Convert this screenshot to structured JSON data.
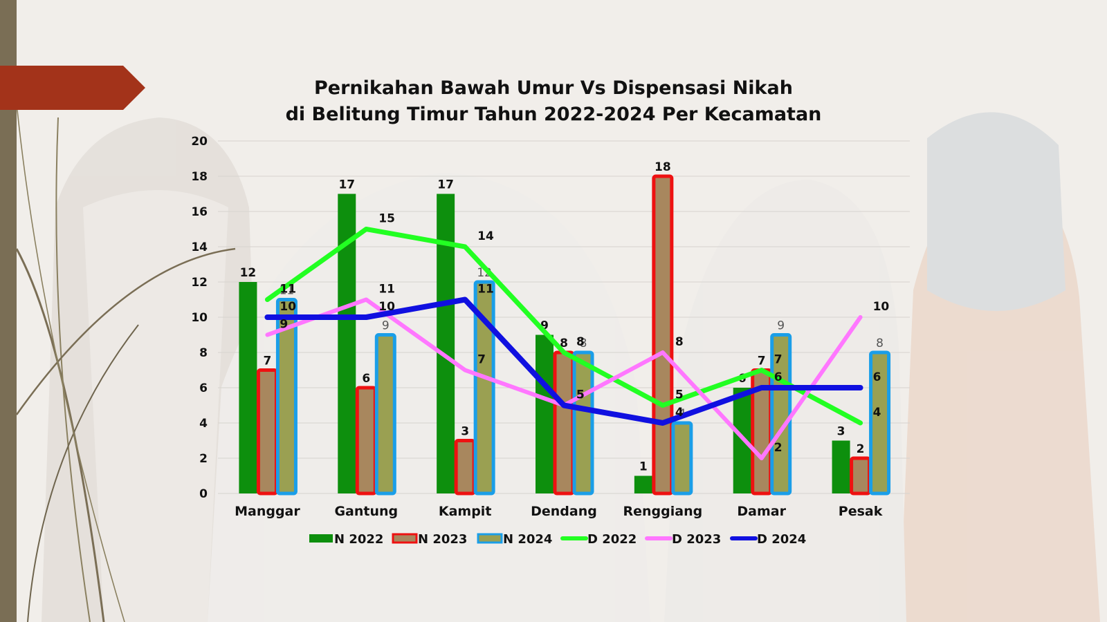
{
  "colors": {
    "n2022": "#0d8f0d",
    "n2023": "#ee1111",
    "n2023_inner": "#a8875e",
    "n2024": "#1a9ee8",
    "n2024_inner": "#9aa052",
    "d2022": "#22ff22",
    "d2023": "#ff77ff",
    "d2024": "#1010e0",
    "accent_arrow": "#a3331a",
    "left_stripe": "#7a6e55"
  },
  "chart_data": {
    "type": "bar",
    "title_lines": [
      "Pernikahan Bawah Umur Vs Dispensasi Nikah",
      "di Belitung Timur Tahun 2022-2024 Per Kecamatan"
    ],
    "categories": [
      "Manggar",
      "Gantung",
      "Kampit",
      "Dendang",
      "Renggiang",
      "Damar",
      "Pesak"
    ],
    "ylim": [
      0,
      20
    ],
    "yticks": [
      0,
      2,
      4,
      6,
      8,
      10,
      12,
      14,
      16,
      18,
      20
    ],
    "grid": true,
    "legend_position": "bottom",
    "series": [
      {
        "name": "N 2022",
        "kind": "bar",
        "values": [
          12,
          17,
          17,
          9,
          1,
          6,
          3
        ]
      },
      {
        "name": "N 2023",
        "kind": "bar",
        "values": [
          7,
          6,
          3,
          8,
          18,
          7,
          2
        ]
      },
      {
        "name": "N 2024",
        "kind": "bar",
        "values": [
          11,
          9,
          12,
          8,
          4,
          9,
          8
        ]
      },
      {
        "name": "D 2022",
        "kind": "line",
        "values": [
          11,
          15,
          14,
          8,
          5,
          7,
          4
        ]
      },
      {
        "name": "D 2023",
        "kind": "line",
        "values": [
          9,
          11,
          7,
          5,
          8,
          2,
          10
        ]
      },
      {
        "name": "D 2024",
        "kind": "line",
        "values": [
          10,
          10,
          11,
          5,
          4,
          6,
          6
        ]
      }
    ]
  }
}
